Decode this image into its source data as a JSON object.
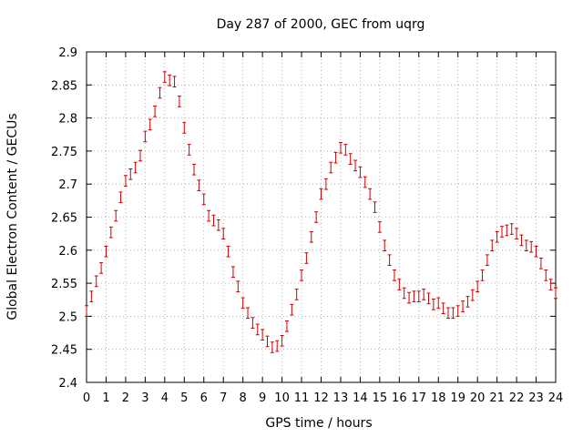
{
  "chart_data": {
    "type": "scatter",
    "title": "Day 287 of 2000, GEC from uqrg",
    "xlabel": "GPS time / hours",
    "ylabel": "Global Electron Content / GECUs",
    "xlim": [
      0,
      24
    ],
    "ylim": [
      2.4,
      2.9
    ],
    "xticks": [
      "0",
      "1",
      "2",
      "3",
      "4",
      "5",
      "6",
      "7",
      "8",
      "9",
      "10",
      "11",
      "12",
      "13",
      "14",
      "15",
      "16",
      "17",
      "18",
      "19",
      "20",
      "21",
      "22",
      "23",
      "24"
    ],
    "yticks": [
      "2.4",
      "2.45",
      "2.5",
      "2.55",
      "2.6",
      "2.65",
      "2.7",
      "2.75",
      "2.8",
      "2.85",
      "2.9"
    ],
    "grid": true,
    "point_color": "#cc0000",
    "error_bar": 0.008,
    "series": [
      {
        "x": [
          0.0,
          0.25,
          0.5,
          0.75,
          1.0,
          1.25,
          1.5,
          1.75,
          2.0,
          2.25,
          2.5,
          2.75,
          3.0,
          3.25,
          3.5,
          3.75,
          4.0,
          4.25,
          4.5,
          4.75,
          5.0,
          5.25,
          5.5,
          5.75,
          6.0,
          6.25,
          6.5,
          6.75,
          7.0,
          7.25,
          7.5,
          7.75,
          8.0,
          8.25,
          8.5,
          8.75,
          9.0,
          9.25,
          9.5,
          9.75,
          10.0,
          10.25,
          10.5,
          10.75,
          11.0,
          11.25,
          11.5,
          11.75,
          12.0,
          12.25,
          12.5,
          12.75,
          13.0,
          13.25,
          13.5,
          13.75,
          14.0,
          14.25,
          14.5,
          14.75,
          15.0,
          15.25,
          15.5,
          15.75,
          16.0,
          16.25,
          16.5,
          16.75,
          17.0,
          17.25,
          17.5,
          17.75,
          18.0,
          18.25,
          18.5,
          18.75,
          19.0,
          19.25,
          19.5,
          19.75,
          20.0,
          20.25,
          20.5,
          20.75,
          21.0,
          21.25,
          21.5,
          21.75,
          22.0,
          22.25,
          22.5,
          22.75,
          23.0,
          23.25,
          23.5,
          23.75,
          24.0
        ],
        "y": [
          2.508,
          2.53,
          2.553,
          2.573,
          2.598,
          2.627,
          2.652,
          2.68,
          2.705,
          2.715,
          2.725,
          2.743,
          2.772,
          2.79,
          2.81,
          2.838,
          2.862,
          2.857,
          2.855,
          2.825,
          2.785,
          2.752,
          2.722,
          2.698,
          2.677,
          2.652,
          2.645,
          2.638,
          2.625,
          2.598,
          2.567,
          2.545,
          2.52,
          2.505,
          2.49,
          2.48,
          2.472,
          2.462,
          2.453,
          2.455,
          2.463,
          2.485,
          2.51,
          2.533,
          2.562,
          2.588,
          2.62,
          2.65,
          2.685,
          2.7,
          2.725,
          2.74,
          2.755,
          2.752,
          2.738,
          2.728,
          2.718,
          2.703,
          2.685,
          2.665,
          2.635,
          2.607,
          2.585,
          2.562,
          2.548,
          2.535,
          2.528,
          2.53,
          2.53,
          2.533,
          2.527,
          2.518,
          2.52,
          2.512,
          2.505,
          2.505,
          2.508,
          2.515,
          2.522,
          2.532,
          2.545,
          2.562,
          2.585,
          2.607,
          2.62,
          2.628,
          2.63,
          2.632,
          2.625,
          2.615,
          2.607,
          2.605,
          2.598,
          2.58,
          2.562,
          2.548,
          2.535
        ]
      }
    ]
  }
}
